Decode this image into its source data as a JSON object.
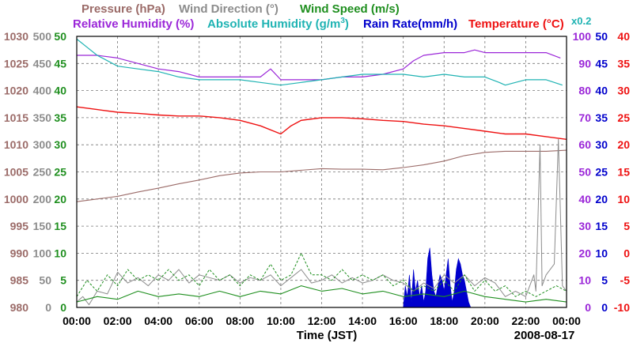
{
  "chart_data": {
    "type": "line",
    "date": "2008-08-17",
    "xlabel": "Time (JST)",
    "x_ticks": [
      "00:00",
      "02:00",
      "04:00",
      "06:00",
      "08:00",
      "10:00",
      "12:00",
      "14:00",
      "16:00",
      "18:00",
      "20:00",
      "22:00",
      "00:00"
    ],
    "xlim": [
      0,
      24
    ],
    "legend": {
      "row1": [
        {
          "label": "Pressure (hPa)",
          "color": "#9b6b68"
        },
        {
          "label": "Wind Direction (°)",
          "color": "#8c8c8c"
        },
        {
          "label": "Wind Speed (m/s)",
          "color": "#1f8f1f"
        }
      ],
      "row2": [
        {
          "label": "Relative Humidity (%)",
          "color": "#9b27d8"
        },
        {
          "label": "Absolute Humidity (g/m",
          "label_sup": "3",
          "label_tail": ")",
          "color": "#1fb3b3"
        },
        {
          "label": "Rain Rate(mm/h)",
          "color": "#0000cc"
        },
        {
          "label": "Temperature (°C)",
          "color": "#ee1111"
        }
      ],
      "multiplier_note": "x0.2"
    },
    "axes": {
      "pressure": {
        "color": "#9b6b68",
        "min": 980,
        "max": 1030,
        "ticks": [
          "1030",
          "1025",
          "1020",
          "1015",
          "1010",
          "1005",
          "1000",
          "995",
          "990",
          "985",
          "980"
        ]
      },
      "wind_direction": {
        "color": "#8c8c8c",
        "min": 0,
        "max": 500,
        "ticks": [
          "500",
          "450",
          "400",
          "350",
          "300",
          "250",
          "200",
          "150",
          "100",
          "50",
          "0"
        ]
      },
      "wind_speed": {
        "color": "#1f8f1f",
        "min": 0,
        "max": 50,
        "ticks": [
          "50",
          "45",
          "40",
          "35",
          "30",
          "25",
          "20",
          "15",
          "10",
          "5",
          "0"
        ]
      },
      "relative_humidity": {
        "color": "#9b27d8",
        "min": 0,
        "max": 100,
        "ticks": [
          "100",
          "90",
          "80",
          "70",
          "60",
          "50",
          "40",
          "30",
          "20",
          "10",
          "0"
        ]
      },
      "rain_rate": {
        "color": "#0000cc",
        "min": 0,
        "max": 50,
        "ticks": [
          "50",
          "45",
          "40",
          "35",
          "30",
          "25",
          "20",
          "15",
          "10",
          "5",
          "0"
        ]
      },
      "temperature": {
        "color": "#ee1111",
        "min": -10,
        "max": 40,
        "ticks": [
          "40",
          "35",
          "30",
          "25",
          "20",
          "15",
          "10",
          "5",
          "0",
          "-5",
          "-10"
        ]
      }
    },
    "series": [
      {
        "name": "Relative Humidity",
        "axis": "relative_humidity",
        "color": "#9b27d8",
        "width": 1.2,
        "points": [
          [
            0,
            93
          ],
          [
            1,
            93
          ],
          [
            2,
            92
          ],
          [
            3,
            90
          ],
          [
            4,
            88
          ],
          [
            5,
            87
          ],
          [
            6,
            85
          ],
          [
            7,
            85
          ],
          [
            8,
            85
          ],
          [
            9,
            85
          ],
          [
            9.5,
            88
          ],
          [
            10,
            84
          ],
          [
            11,
            84
          ],
          [
            12,
            84
          ],
          [
            13,
            85
          ],
          [
            14,
            85
          ],
          [
            15,
            86
          ],
          [
            16,
            88
          ],
          [
            16.5,
            91
          ],
          [
            17,
            93
          ],
          [
            18,
            94
          ],
          [
            19,
            94
          ],
          [
            19.5,
            95
          ],
          [
            20,
            94
          ],
          [
            21,
            94
          ],
          [
            22,
            94
          ],
          [
            23,
            94
          ],
          [
            23.7,
            92
          ]
        ]
      },
      {
        "name": "Absolute Humidity",
        "axis": "relative_humidity",
        "color": "#1fb3b3",
        "width": 1.2,
        "points": [
          [
            0,
            99
          ],
          [
            0.5,
            96
          ],
          [
            1,
            93
          ],
          [
            2,
            89
          ],
          [
            3,
            88
          ],
          [
            4,
            87
          ],
          [
            5,
            85
          ],
          [
            6,
            84
          ],
          [
            7,
            84
          ],
          [
            8,
            84
          ],
          [
            9,
            83
          ],
          [
            10,
            82
          ],
          [
            11,
            83
          ],
          [
            12,
            84
          ],
          [
            13,
            85
          ],
          [
            14,
            86
          ],
          [
            15,
            86
          ],
          [
            16,
            86
          ],
          [
            17,
            85
          ],
          [
            18,
            86
          ],
          [
            19,
            85
          ],
          [
            20,
            85
          ],
          [
            20.7,
            83
          ],
          [
            21,
            82
          ],
          [
            22,
            84
          ],
          [
            23,
            84
          ],
          [
            23.8,
            82
          ]
        ]
      },
      {
        "name": "Temperature",
        "axis": "temperature",
        "color": "#ee1111",
        "width": 1.4,
        "points": [
          [
            0,
            27
          ],
          [
            1,
            26.5
          ],
          [
            2,
            26
          ],
          [
            3,
            25.8
          ],
          [
            4,
            25.5
          ],
          [
            5,
            25.3
          ],
          [
            6,
            25.3
          ],
          [
            7,
            25
          ],
          [
            8,
            24.5
          ],
          [
            9,
            23.5
          ],
          [
            10,
            22
          ],
          [
            10.5,
            23.5
          ],
          [
            11,
            24.5
          ],
          [
            12,
            25
          ],
          [
            13,
            25
          ],
          [
            14,
            24.8
          ],
          [
            15,
            24.5
          ],
          [
            16,
            24.3
          ],
          [
            17,
            23.8
          ],
          [
            18,
            23.5
          ],
          [
            19,
            23
          ],
          [
            20,
            22.5
          ],
          [
            21,
            22
          ],
          [
            22,
            22
          ],
          [
            23,
            21.5
          ],
          [
            24,
            21
          ]
        ]
      },
      {
        "name": "Pressure",
        "axis": "pressure",
        "color": "#9b6b68",
        "width": 1.1,
        "points": [
          [
            0,
            999.5
          ],
          [
            1,
            1000
          ],
          [
            2,
            1000.5
          ],
          [
            3,
            1001.3
          ],
          [
            4,
            1002
          ],
          [
            5,
            1002.8
          ],
          [
            6,
            1003.5
          ],
          [
            7,
            1004.3
          ],
          [
            8,
            1004.8
          ],
          [
            9,
            1005
          ],
          [
            10,
            1005
          ],
          [
            11,
            1005.3
          ],
          [
            12,
            1005.6
          ],
          [
            13,
            1005.5
          ],
          [
            14,
            1005.5
          ],
          [
            15,
            1005.4
          ],
          [
            16,
            1005.8
          ],
          [
            17,
            1006.3
          ],
          [
            18,
            1007
          ],
          [
            19,
            1008
          ],
          [
            20,
            1008.6
          ],
          [
            21,
            1008.8
          ],
          [
            22,
            1008.8
          ],
          [
            23,
            1008.8
          ],
          [
            24,
            1009
          ]
        ]
      },
      {
        "name": "Wind Direction",
        "axis": "wind_direction",
        "color": "#8c8c8c",
        "width": 1,
        "points": [
          [
            0,
            10
          ],
          [
            0.3,
            20
          ],
          [
            0.6,
            5
          ],
          [
            1,
            30
          ],
          [
            1.5,
            25
          ],
          [
            2,
            65
          ],
          [
            2.5,
            45
          ],
          [
            3,
            55
          ],
          [
            3.5,
            40
          ],
          [
            4,
            60
          ],
          [
            4.5,
            50
          ],
          [
            5,
            70
          ],
          [
            5.5,
            45
          ],
          [
            6,
            60
          ],
          [
            6.5,
            55
          ],
          [
            7,
            50
          ],
          [
            7.5,
            60
          ],
          [
            8,
            45
          ],
          [
            8.5,
            55
          ],
          [
            9,
            50
          ],
          [
            9.5,
            60
          ],
          [
            10,
            40
          ],
          [
            10.5,
            55
          ],
          [
            11,
            70
          ],
          [
            11.5,
            45
          ],
          [
            12,
            50
          ],
          [
            12.5,
            60
          ],
          [
            13,
            45
          ],
          [
            13.5,
            55
          ],
          [
            14,
            45
          ],
          [
            14.5,
            50
          ],
          [
            15,
            60
          ],
          [
            15.5,
            50
          ],
          [
            16,
            45
          ],
          [
            16.5,
            30
          ],
          [
            17,
            45
          ],
          [
            17.5,
            35
          ],
          [
            18,
            60
          ],
          [
            18.5,
            45
          ],
          [
            19,
            60
          ],
          [
            19.5,
            40
          ],
          [
            20,
            55
          ],
          [
            20.5,
            45
          ],
          [
            21,
            20
          ],
          [
            21.5,
            30
          ],
          [
            22,
            20
          ],
          [
            22.4,
            60
          ],
          [
            22.5,
            30
          ],
          [
            22.7,
            300
          ],
          [
            22.8,
            40
          ],
          [
            23,
            60
          ],
          [
            23.4,
            80
          ],
          [
            23.6,
            310
          ],
          [
            23.8,
            40
          ],
          [
            24,
            30
          ]
        ]
      },
      {
        "name": "Wind Speed (dashed)",
        "axis": "wind_speed",
        "color": "#1f8f1f",
        "width": 1,
        "dash": "3,2",
        "points": [
          [
            0,
            2
          ],
          [
            0.5,
            5
          ],
          [
            1,
            3
          ],
          [
            1.5,
            6
          ],
          [
            2,
            4
          ],
          [
            2.5,
            7
          ],
          [
            3,
            5
          ],
          [
            3.5,
            6
          ],
          [
            4,
            5
          ],
          [
            4.5,
            7
          ],
          [
            5,
            5
          ],
          [
            5.5,
            6
          ],
          [
            6,
            4
          ],
          [
            6.5,
            7
          ],
          [
            7,
            5
          ],
          [
            7.5,
            6
          ],
          [
            8,
            4
          ],
          [
            8.5,
            6
          ],
          [
            9,
            5
          ],
          [
            9.5,
            8
          ],
          [
            10,
            5
          ],
          [
            10.5,
            6
          ],
          [
            11,
            10
          ],
          [
            11.5,
            6
          ],
          [
            12,
            6
          ],
          [
            12.5,
            5
          ],
          [
            13,
            7
          ],
          [
            13.5,
            5
          ],
          [
            14,
            6
          ],
          [
            14.5,
            5
          ],
          [
            15,
            6
          ],
          [
            15.5,
            4
          ],
          [
            16,
            5
          ],
          [
            16.5,
            3
          ],
          [
            17,
            4
          ],
          [
            17.5,
            3
          ],
          [
            18,
            5
          ],
          [
            18.5,
            3
          ],
          [
            19,
            6
          ],
          [
            19.5,
            3
          ],
          [
            20,
            5
          ],
          [
            20.5,
            3
          ],
          [
            21,
            4
          ],
          [
            21.5,
            2
          ],
          [
            22,
            3
          ],
          [
            22.5,
            2
          ],
          [
            23,
            3
          ],
          [
            23.5,
            4
          ],
          [
            24,
            3
          ]
        ]
      },
      {
        "name": "Wind Speed",
        "axis": "wind_speed",
        "color": "#1f8f1f",
        "width": 1.1,
        "points": [
          [
            0,
            1
          ],
          [
            1,
            2
          ],
          [
            2,
            1.5
          ],
          [
            3,
            3
          ],
          [
            4,
            2
          ],
          [
            5,
            2.5
          ],
          [
            6,
            2
          ],
          [
            7,
            3
          ],
          [
            8,
            2
          ],
          [
            9,
            3
          ],
          [
            10,
            2.5
          ],
          [
            11,
            4
          ],
          [
            12,
            3
          ],
          [
            13,
            3.5
          ],
          [
            14,
            2.5
          ],
          [
            15,
            3
          ],
          [
            16,
            2
          ],
          [
            17,
            2.5
          ],
          [
            18,
            2
          ],
          [
            19,
            3
          ],
          [
            20,
            2
          ],
          [
            21,
            1.5
          ],
          [
            22,
            1
          ],
          [
            23,
            1.5
          ],
          [
            24,
            1
          ]
        ]
      }
    ],
    "rain": {
      "name": "Rain Rate",
      "axis": "rain_rate",
      "color": "#0000cc",
      "points": [
        [
          16,
          0
        ],
        [
          16.1,
          4
        ],
        [
          16.2,
          2
        ],
        [
          16.3,
          6
        ],
        [
          16.4,
          1
        ],
        [
          16.5,
          7
        ],
        [
          16.6,
          3
        ],
        [
          16.7,
          5
        ],
        [
          16.8,
          2
        ],
        [
          16.9,
          4
        ],
        [
          17,
          1
        ],
        [
          17.1,
          3
        ],
        [
          17.2,
          9
        ],
        [
          17.3,
          11
        ],
        [
          17.4,
          6
        ],
        [
          17.5,
          3
        ],
        [
          17.6,
          2
        ],
        [
          17.7,
          4
        ],
        [
          17.8,
          6
        ],
        [
          17.9,
          5
        ],
        [
          18,
          3
        ],
        [
          18.1,
          6
        ],
        [
          18.2,
          9
        ],
        [
          18.3,
          4
        ],
        [
          18.4,
          1
        ],
        [
          18.5,
          3
        ],
        [
          18.6,
          7
        ],
        [
          18.7,
          9
        ],
        [
          18.8,
          8
        ],
        [
          18.9,
          6
        ],
        [
          19,
          5
        ],
        [
          19.1,
          3
        ],
        [
          19.2,
          1
        ],
        [
          19.3,
          0
        ]
      ]
    }
  }
}
